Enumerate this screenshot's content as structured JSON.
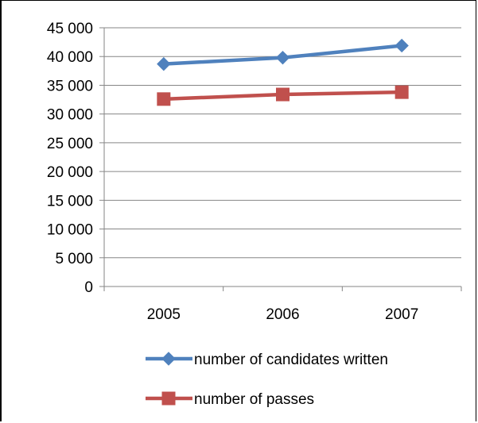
{
  "chart_data": {
    "type": "line",
    "categories": [
      "2005",
      "2006",
      "2007"
    ],
    "series": [
      {
        "name": "number of candidates written",
        "values": [
          38700,
          39800,
          41900
        ],
        "color": "#4f81bd",
        "marker": "diamond"
      },
      {
        "name": "number of passes",
        "values": [
          32600,
          33400,
          33800
        ],
        "color": "#c0504d",
        "marker": "square"
      }
    ],
    "ylim": [
      0,
      45000
    ],
    "y_ticks": [
      0,
      5000,
      10000,
      15000,
      20000,
      25000,
      30000,
      35000,
      40000,
      45000
    ],
    "y_tick_labels": [
      "0",
      "5 000",
      "10 000",
      "15 000",
      "20 000",
      "25 000",
      "30 000",
      "35 000",
      "40 000",
      "45 000"
    ],
    "grid": true,
    "legend_position": "bottom",
    "title": "",
    "xlabel": "",
    "ylabel": ""
  }
}
